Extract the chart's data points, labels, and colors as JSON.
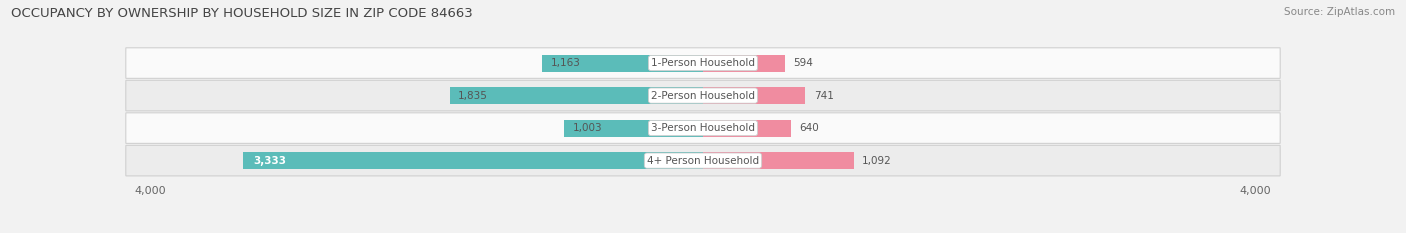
{
  "title": "OCCUPANCY BY OWNERSHIP BY HOUSEHOLD SIZE IN ZIP CODE 84663",
  "source": "Source: ZipAtlas.com",
  "categories": [
    "1-Person Household",
    "2-Person Household",
    "3-Person Household",
    "4+ Person Household"
  ],
  "owner_values": [
    1163,
    1835,
    1003,
    3333
  ],
  "renter_values": [
    594,
    741,
    640,
    1092
  ],
  "owner_color": "#5bbcb9",
  "renter_color": "#f08ca0",
  "axis_max": 4000,
  "bg_color": "#f2f2f2",
  "row_bg_light": "#fafafa",
  "row_bg_dark": "#ececec",
  "title_fontsize": 9.5,
  "source_fontsize": 7.5,
  "value_fontsize": 7.5,
  "cat_fontsize": 7.5,
  "legend_fontsize": 8,
  "axis_label_fontsize": 8
}
